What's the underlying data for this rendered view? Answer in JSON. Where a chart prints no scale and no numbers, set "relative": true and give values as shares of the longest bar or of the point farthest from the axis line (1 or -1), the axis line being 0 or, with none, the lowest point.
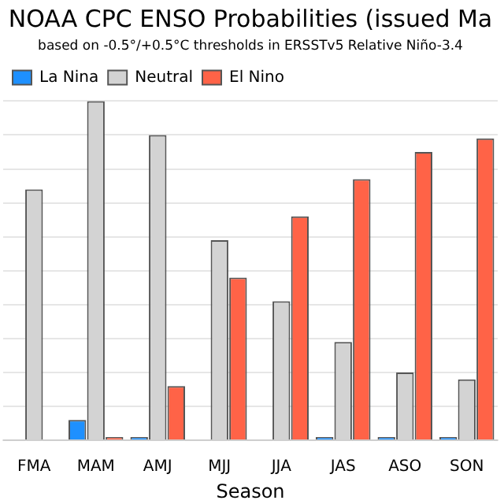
{
  "chart_data": {
    "type": "bar",
    "title": "NOAA CPC ENSO Probabilities (issued Ma",
    "subtitle": "based on -0.5°/+0.5°C thresholds in ERSSTv5 Relative Niño-3.4",
    "xlabel": "Season",
    "categories": [
      "FMA",
      "MAM",
      "AMJ",
      "MJJ",
      "JJA",
      "JAS",
      "ASO",
      "SON"
    ],
    "relative": true,
    "grid": "y",
    "legend": "top left",
    "series": [
      {
        "name": "La Nina",
        "color": "#1e90ff",
        "values": [
          null,
          0.06,
          0.01,
          0,
          0,
          0.01,
          0.01,
          0.01
        ]
      },
      {
        "name": "Neutral",
        "color": "#d3d3d3",
        "values": [
          0.74,
          1,
          0.9,
          0.59,
          0.41,
          0.29,
          0.2,
          0.18
        ]
      },
      {
        "name": "El Nino",
        "color": "#ff6347",
        "values": [
          0,
          0.01,
          0.16,
          0.48,
          0.66,
          0.77,
          0.85,
          0.89
        ]
      }
    ]
  }
}
